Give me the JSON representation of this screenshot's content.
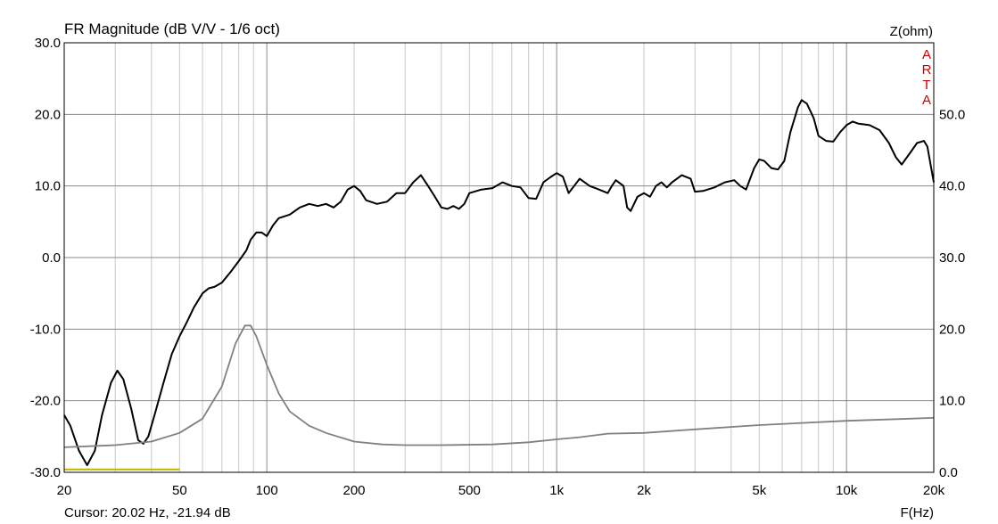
{
  "chart_data": {
    "type": "line",
    "title": "FR Magnitude (dB V/V - 1/6 oct)",
    "xlabel": "F(Hz)",
    "ylabel_right": "Z(ohm)",
    "x_scale": "log",
    "xlim": [
      20,
      20000
    ],
    "ylim": [
      -30,
      30
    ],
    "ylim_right": [
      0,
      60
    ],
    "grid": true,
    "x_ticks": [
      {
        "value": 20,
        "label": "20"
      },
      {
        "value": 50,
        "label": "50"
      },
      {
        "value": 100,
        "label": "100"
      },
      {
        "value": 200,
        "label": "200"
      },
      {
        "value": 500,
        "label": "500"
      },
      {
        "value": 1000,
        "label": "1k"
      },
      {
        "value": 2000,
        "label": "2k"
      },
      {
        "value": 5000,
        "label": "5k"
      },
      {
        "value": 10000,
        "label": "10k"
      },
      {
        "value": 20000,
        "label": "20k"
      }
    ],
    "y_ticks_left": [
      {
        "value": 30,
        "label": "30.0"
      },
      {
        "value": 20,
        "label": "20.0"
      },
      {
        "value": 10,
        "label": "10.0"
      },
      {
        "value": 0,
        "label": "0.0"
      },
      {
        "value": -10,
        "label": "-10.0"
      },
      {
        "value": -20,
        "label": "-20.0"
      },
      {
        "value": -30,
        "label": "-30.0"
      }
    ],
    "y_ticks_right": [
      {
        "value": 50,
        "label": "50.0"
      },
      {
        "value": 40,
        "label": "40.0"
      },
      {
        "value": 30,
        "label": "30.0"
      },
      {
        "value": 20,
        "label": "20.0"
      },
      {
        "value": 10,
        "label": "10.0"
      },
      {
        "value": 0,
        "label": "0.0"
      }
    ],
    "series": [
      {
        "axis": "left",
        "color": "#000000",
        "points": [
          [
            20,
            -22.0
          ],
          [
            21,
            -23.5
          ],
          [
            22.5,
            -27.0
          ],
          [
            24,
            -29.0
          ],
          [
            25.5,
            -27.0
          ],
          [
            27,
            -22.0
          ],
          [
            29,
            -17.5
          ],
          [
            30.5,
            -15.8
          ],
          [
            32,
            -17.0
          ],
          [
            34,
            -21.0
          ],
          [
            36,
            -25.5
          ],
          [
            37.5,
            -26.0
          ],
          [
            39,
            -25.0
          ],
          [
            41,
            -22.0
          ],
          [
            44,
            -17.5
          ],
          [
            47,
            -13.5
          ],
          [
            50,
            -11.0
          ],
          [
            53,
            -9.0
          ],
          [
            56,
            -7.0
          ],
          [
            60,
            -5.0
          ],
          [
            63,
            -4.3
          ],
          [
            66,
            -4.1
          ],
          [
            70,
            -3.5
          ],
          [
            75,
            -2.0
          ],
          [
            80,
            -0.5
          ],
          [
            85,
            1.0
          ],
          [
            88,
            2.5
          ],
          [
            92,
            3.5
          ],
          [
            96,
            3.5
          ],
          [
            100,
            3.0
          ],
          [
            105,
            4.5
          ],
          [
            110,
            5.5
          ],
          [
            120,
            6.0
          ],
          [
            130,
            7.0
          ],
          [
            140,
            7.5
          ],
          [
            150,
            7.2
          ],
          [
            160,
            7.5
          ],
          [
            170,
            7.0
          ],
          [
            180,
            7.8
          ],
          [
            190,
            9.5
          ],
          [
            200,
            10.0
          ],
          [
            210,
            9.3
          ],
          [
            220,
            8.0
          ],
          [
            240,
            7.5
          ],
          [
            260,
            7.8
          ],
          [
            280,
            9.0
          ],
          [
            300,
            9.0
          ],
          [
            320,
            10.5
          ],
          [
            340,
            11.5
          ],
          [
            360,
            10.0
          ],
          [
            380,
            8.5
          ],
          [
            400,
            7.0
          ],
          [
            420,
            6.8
          ],
          [
            440,
            7.2
          ],
          [
            460,
            6.8
          ],
          [
            480,
            7.5
          ],
          [
            500,
            9.0
          ],
          [
            550,
            9.5
          ],
          [
            600,
            9.7
          ],
          [
            650,
            10.5
          ],
          [
            700,
            10.0
          ],
          [
            750,
            9.8
          ],
          [
            800,
            8.3
          ],
          [
            850,
            8.2
          ],
          [
            900,
            10.5
          ],
          [
            950,
            11.2
          ],
          [
            1000,
            11.8
          ],
          [
            1050,
            11.3
          ],
          [
            1100,
            9.0
          ],
          [
            1200,
            11.0
          ],
          [
            1300,
            10.0
          ],
          [
            1400,
            9.5
          ],
          [
            1500,
            9.0
          ],
          [
            1550,
            10.0
          ],
          [
            1600,
            10.8
          ],
          [
            1700,
            10.0
          ],
          [
            1750,
            7.0
          ],
          [
            1800,
            6.5
          ],
          [
            1900,
            8.5
          ],
          [
            2000,
            9.0
          ],
          [
            2100,
            8.5
          ],
          [
            2200,
            10.0
          ],
          [
            2300,
            10.5
          ],
          [
            2400,
            9.8
          ],
          [
            2500,
            10.5
          ],
          [
            2600,
            11.0
          ],
          [
            2700,
            11.5
          ],
          [
            2900,
            11.0
          ],
          [
            3000,
            9.2
          ],
          [
            3200,
            9.3
          ],
          [
            3500,
            9.8
          ],
          [
            3800,
            10.5
          ],
          [
            4100,
            10.8
          ],
          [
            4300,
            10.0
          ],
          [
            4500,
            9.5
          ],
          [
            4800,
            12.5
          ],
          [
            5000,
            13.7
          ],
          [
            5200,
            13.5
          ],
          [
            5500,
            12.5
          ],
          [
            5800,
            12.3
          ],
          [
            6100,
            13.5
          ],
          [
            6400,
            17.5
          ],
          [
            6800,
            21.0
          ],
          [
            7000,
            22.0
          ],
          [
            7300,
            21.5
          ],
          [
            7700,
            19.5
          ],
          [
            8000,
            17.0
          ],
          [
            8500,
            16.3
          ],
          [
            9000,
            16.2
          ],
          [
            9500,
            17.5
          ],
          [
            10000,
            18.5
          ],
          [
            10500,
            19.0
          ],
          [
            11000,
            18.7
          ],
          [
            12000,
            18.5
          ],
          [
            13000,
            17.8
          ],
          [
            14000,
            16.0
          ],
          [
            14800,
            14.0
          ],
          [
            15500,
            13.0
          ],
          [
            16500,
            14.5
          ],
          [
            17500,
            16.0
          ],
          [
            18500,
            16.3
          ],
          [
            19000,
            15.5
          ],
          [
            19500,
            13.0
          ],
          [
            20000,
            10.5
          ]
        ]
      },
      {
        "axis": "right",
        "color": "#808080",
        "points": [
          [
            20,
            3.5
          ],
          [
            30,
            3.8
          ],
          [
            40,
            4.3
          ],
          [
            50,
            5.5
          ],
          [
            60,
            7.5
          ],
          [
            70,
            12.0
          ],
          [
            78,
            18.0
          ],
          [
            84,
            20.5
          ],
          [
            88,
            20.5
          ],
          [
            92,
            19.0
          ],
          [
            100,
            15.0
          ],
          [
            110,
            11.0
          ],
          [
            120,
            8.5
          ],
          [
            140,
            6.5
          ],
          [
            160,
            5.5
          ],
          [
            200,
            4.3
          ],
          [
            250,
            3.9
          ],
          [
            300,
            3.8
          ],
          [
            400,
            3.8
          ],
          [
            600,
            3.9
          ],
          [
            800,
            4.2
          ],
          [
            1000,
            4.6
          ],
          [
            1200,
            4.9
          ],
          [
            1500,
            5.4
          ],
          [
            2000,
            5.5
          ],
          [
            3000,
            6.0
          ],
          [
            5000,
            6.6
          ],
          [
            10000,
            7.2
          ],
          [
            20000,
            7.6
          ]
        ]
      },
      {
        "axis": "left",
        "color": "#b9b900",
        "points": [
          [
            20,
            -29.6
          ],
          [
            50,
            -29.6
          ]
        ]
      }
    ]
  },
  "watermark": [
    "A",
    "R",
    "T",
    "A"
  ],
  "watermark_color": "#cc0000",
  "cursor_text": "Cursor: 20.02 Hz, -21.94 dB"
}
